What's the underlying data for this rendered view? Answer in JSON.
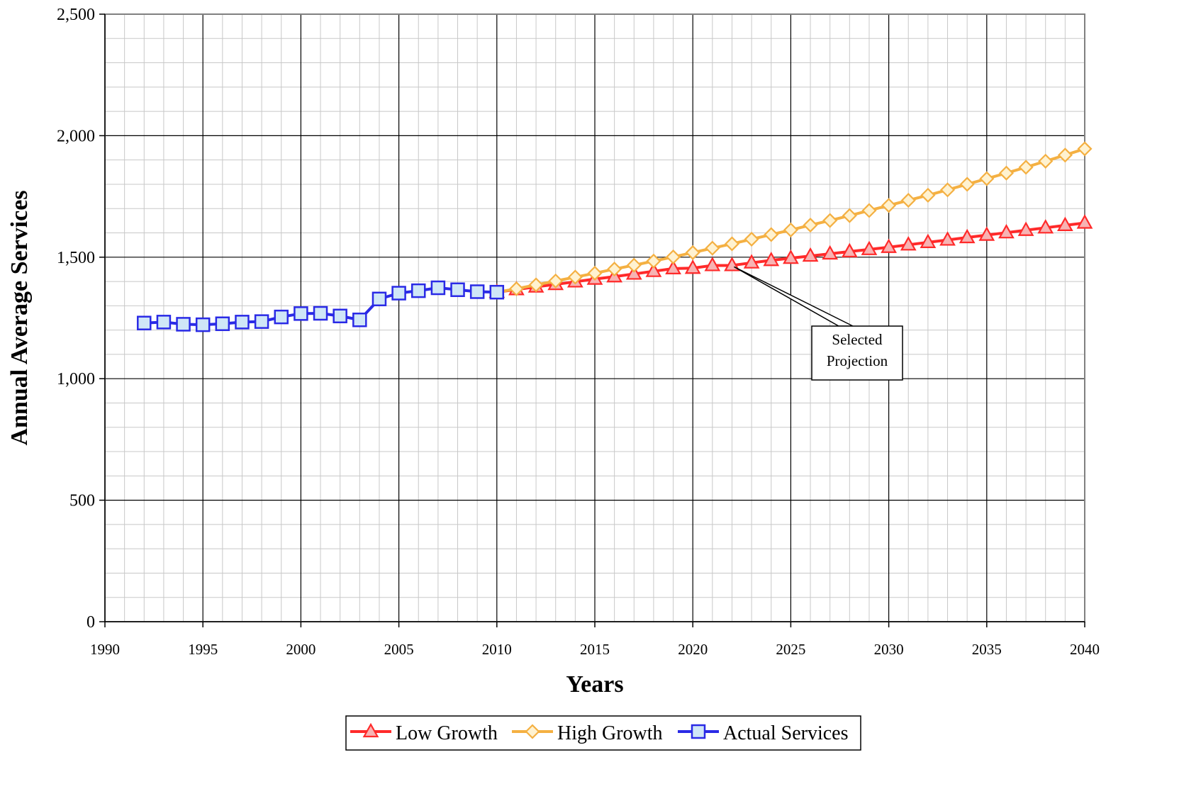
{
  "chart_data": {
    "type": "line",
    "xlabel": "Years",
    "ylabel": "Annual Average Services",
    "xlim": [
      1990,
      2040
    ],
    "ylim": [
      0,
      2500
    ],
    "x_ticks": [
      "1990",
      "1995",
      "2000",
      "2005",
      "2010",
      "2015",
      "2020",
      "2025",
      "2030",
      "2035",
      "2040"
    ],
    "y_ticks": [
      "0",
      "500",
      "1,000",
      "1,500",
      "2,000",
      "2,500"
    ],
    "grid": true,
    "legend_position": "bottom-center",
    "annotation": {
      "text_lines": [
        "Selected",
        "Projection"
      ],
      "points_to": {
        "x": 2022,
        "y": 1466
      }
    },
    "series": [
      {
        "name": "Low Growth",
        "color": "#ff2a2a",
        "marker": "triangle",
        "marker_fill": "#f7b3b3",
        "x": [
          2010,
          2011,
          2012,
          2013,
          2014,
          2015,
          2016,
          2017,
          2018,
          2019,
          2020,
          2021,
          2022,
          2023,
          2024,
          2025,
          2026,
          2027,
          2028,
          2029,
          2030,
          2031,
          2032,
          2033,
          2034,
          2035,
          2036,
          2037,
          2038,
          2039,
          2040
        ],
        "values": [
          1356,
          1367,
          1378,
          1388,
          1399,
          1410,
          1420,
          1431,
          1442,
          1453,
          1455,
          1466,
          1466,
          1477,
          1487,
          1496,
          1505,
          1514,
          1523,
          1532,
          1541,
          1551,
          1561,
          1571,
          1581,
          1591,
          1601,
          1611,
          1621,
          1631,
          1641
        ]
      },
      {
        "name": "High Growth",
        "color": "#f4b042",
        "marker": "diamond",
        "marker_fill": "#fff2d0",
        "x": [
          2010,
          2011,
          2012,
          2013,
          2014,
          2015,
          2016,
          2017,
          2018,
          2019,
          2020,
          2021,
          2022,
          2023,
          2024,
          2025,
          2026,
          2027,
          2028,
          2029,
          2030,
          2031,
          2032,
          2033,
          2034,
          2035,
          2036,
          2037,
          2038,
          2039,
          2040
        ],
        "values": [
          1356,
          1370,
          1386,
          1402,
          1418,
          1434,
          1451,
          1467,
          1484,
          1501,
          1519,
          1537,
          1555,
          1574,
          1593,
          1612,
          1632,
          1651,
          1671,
          1692,
          1713,
          1734,
          1755,
          1777,
          1800,
          1823,
          1846,
          1870,
          1895,
          1920,
          1946
        ]
      },
      {
        "name": "Actual Services",
        "color": "#2a2ae6",
        "marker": "square",
        "marker_fill": "#cfe6f7",
        "x": [
          1992,
          1993,
          1994,
          1995,
          1996,
          1997,
          1998,
          1999,
          2000,
          2001,
          2002,
          2003,
          2004,
          2005,
          2006,
          2007,
          2008,
          2009,
          2010
        ],
        "values": [
          1229,
          1233,
          1224,
          1222,
          1226,
          1233,
          1235,
          1254,
          1268,
          1269,
          1258,
          1242,
          1328,
          1352,
          1362,
          1374,
          1366,
          1358,
          1356
        ]
      }
    ]
  }
}
